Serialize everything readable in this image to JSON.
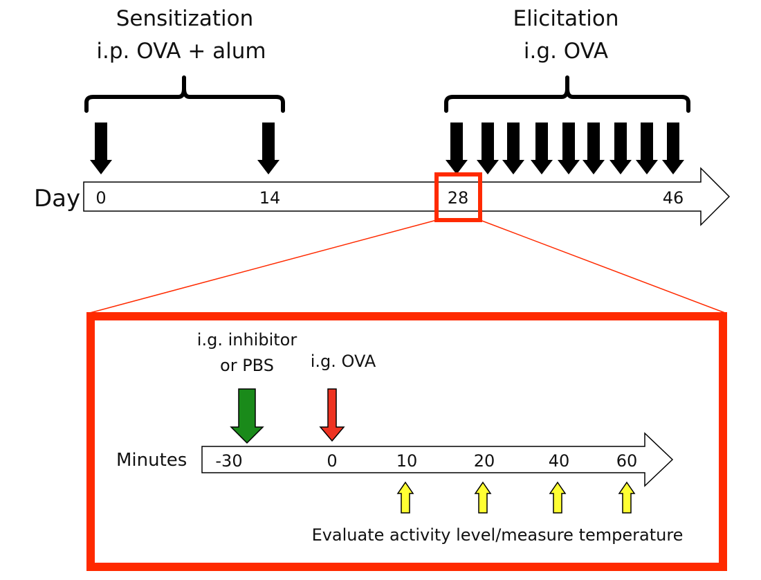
{
  "sensitization": {
    "title": "Sensitization",
    "route": "i.p. OVA + alum"
  },
  "elicitation": {
    "title": "Elicitation",
    "route": "i.g. OVA"
  },
  "day_timeline": {
    "axis_label": "Day",
    "ticks": [
      "0",
      "14",
      "28",
      "46"
    ]
  },
  "detail": {
    "inhibitor_line1": "i.g. inhibitor",
    "inhibitor_line2": "or PBS",
    "ova_label": "i.g. OVA",
    "axis_label": "Minutes",
    "ticks": [
      "-30",
      "0",
      "10",
      "20",
      "40",
      "60"
    ],
    "evaluate_label": "Evaluate activity level/measure temperature"
  },
  "colors": {
    "highlight": "#ff2a00",
    "inhibitor_arrow": "#1a8a1a",
    "ova_arrow": "#ee3322",
    "evaluate_arrow": "#ffff33",
    "dose_arrow": "#000000"
  }
}
